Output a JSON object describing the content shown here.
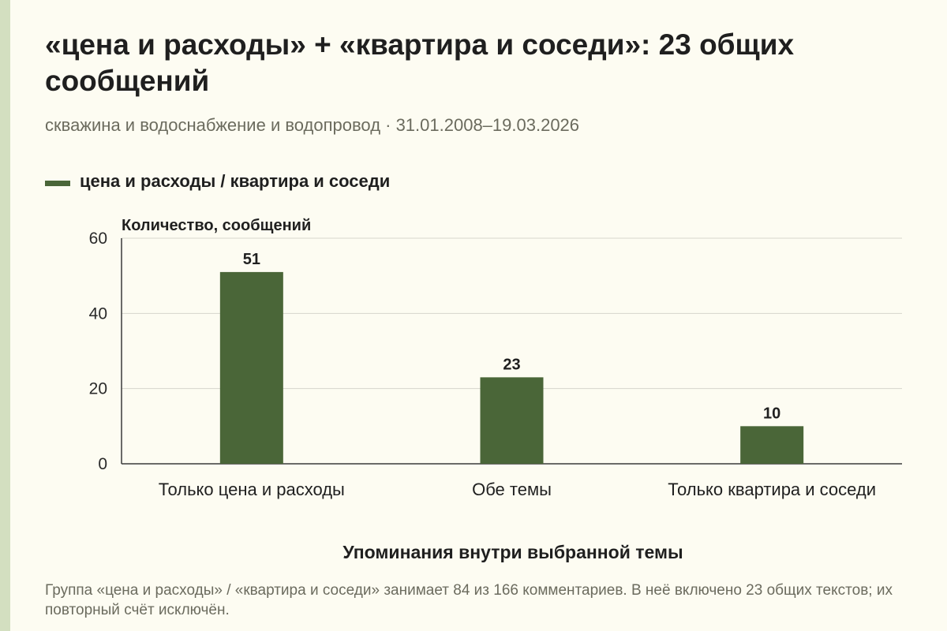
{
  "title": "«цена и расходы» + «квартира и соседи»: 23 общих сообщений",
  "subtitle": "скважина и водоснабжение и водопровод · 31.01.2008–19.03.2026",
  "note": "Группа «цена и расходы» / «квартира и соседи» занимает 84 из 166 комментариев. В неё включено 23 общих текстов; их повторный счёт исключён.",
  "colors": {
    "bar": "#4a6638",
    "accent_strip": "#d3dfc0",
    "background": "#fdfcf2"
  },
  "chart_data": {
    "type": "bar",
    "categories": [
      "Только цена и расходы",
      "Обе темы",
      "Только квартира и соседи"
    ],
    "series": [
      {
        "name": "цена и расходы / квартира и соседи",
        "values": [
          51,
          23,
          10
        ]
      }
    ],
    "ylabel": "Количество, сообщений",
    "xlabel": "Упоминания внутри выбранной темы",
    "ylim": [
      0,
      60
    ],
    "yticks": [
      0,
      20,
      40,
      60
    ],
    "grid": true,
    "legend_position": "top-left",
    "data_labels": true
  }
}
